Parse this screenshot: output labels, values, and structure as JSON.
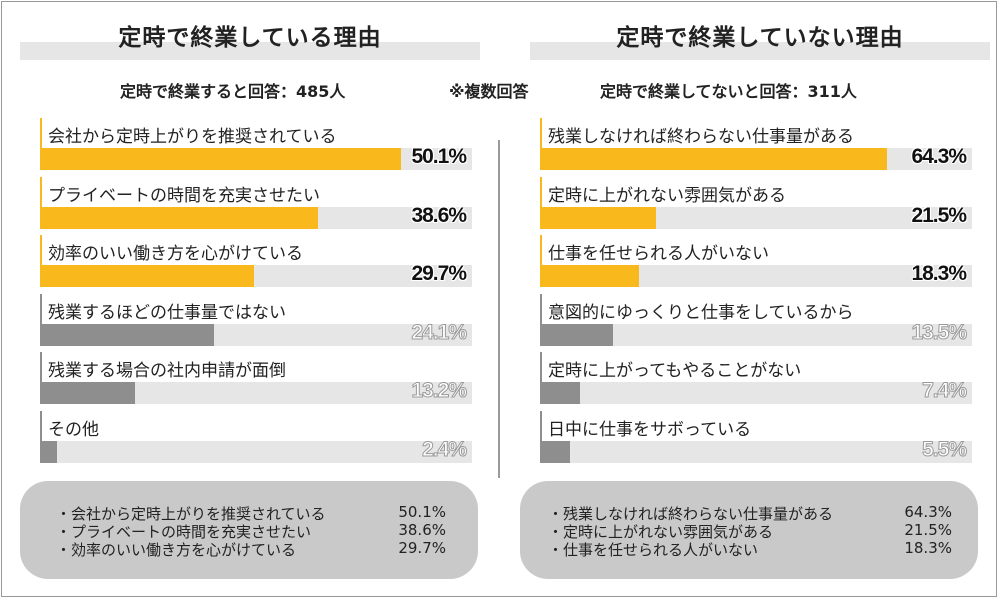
{
  "left": {
    "title": "定時で終業している理由",
    "count_text": "定時で終業すると回答：485人",
    "summary": [
      {
        "text": "・会社から定時上がりを推奨されている",
        "value": "50.1%"
      },
      {
        "text": "・プライベートの時間を充実させたい",
        "value": "38.6%"
      },
      {
        "text": "・効率のいい働き方を心がけている",
        "value": "29.7%"
      }
    ]
  },
  "right": {
    "title": "定時で終業していない理由",
    "count_text": "定時で終業してないと回答：311人",
    "summary": [
      {
        "text": "・残業しなければ終わらない仕事量がある",
        "value": "64.3%"
      },
      {
        "text": "・定時に上がれない雰囲気がある",
        "value": "21.5%"
      },
      {
        "text": "・仕事を任せられる人がいない",
        "value": "18.3%"
      }
    ]
  },
  "note": "※複数回答",
  "colors": {
    "highlight": "#f9b81c",
    "other": "#8e8e8e",
    "track": "#e6e6e6",
    "pct_other": "#c9c9c9"
  },
  "chart_data": [
    {
      "type": "bar",
      "title": "定時で終業している理由",
      "categories": [
        "会社から定時上がりを推奨されている",
        "プライベートの時間を充実させたい",
        "効率のいい働き方を心がけている",
        "残業するほどの仕事量ではない",
        "残業する場合の社内申請が面倒",
        "その他"
      ],
      "values": [
        50.1,
        38.6,
        29.7,
        24.1,
        13.2,
        2.4
      ],
      "labels": [
        "50.1%",
        "38.6%",
        "29.7%",
        "24.1%",
        "13.2%",
        "2.4%"
      ],
      "highlighted": [
        true,
        true,
        true,
        false,
        false,
        false
      ],
      "orientation": "horizontal",
      "xlim": [
        0,
        60
      ]
    },
    {
      "type": "bar",
      "title": "定時で終業していない理由",
      "categories": [
        "残業しなければ終わらない仕事量がある",
        "定時に上がれない雰囲気がある",
        "仕事を任せられる人がいない",
        "意図的にゆっくりと仕事をしているから",
        "定時に上がってもやることがない",
        "日中に仕事をサボっている"
      ],
      "values": [
        64.3,
        21.5,
        18.3,
        13.5,
        7.4,
        5.5
      ],
      "labels": [
        "64.3%",
        "21.5%",
        "18.3%",
        "13.5%",
        "7.4%",
        "5.5%"
      ],
      "highlighted": [
        true,
        true,
        true,
        false,
        false,
        false
      ],
      "orientation": "horizontal",
      "xlim": [
        0,
        80
      ]
    }
  ]
}
